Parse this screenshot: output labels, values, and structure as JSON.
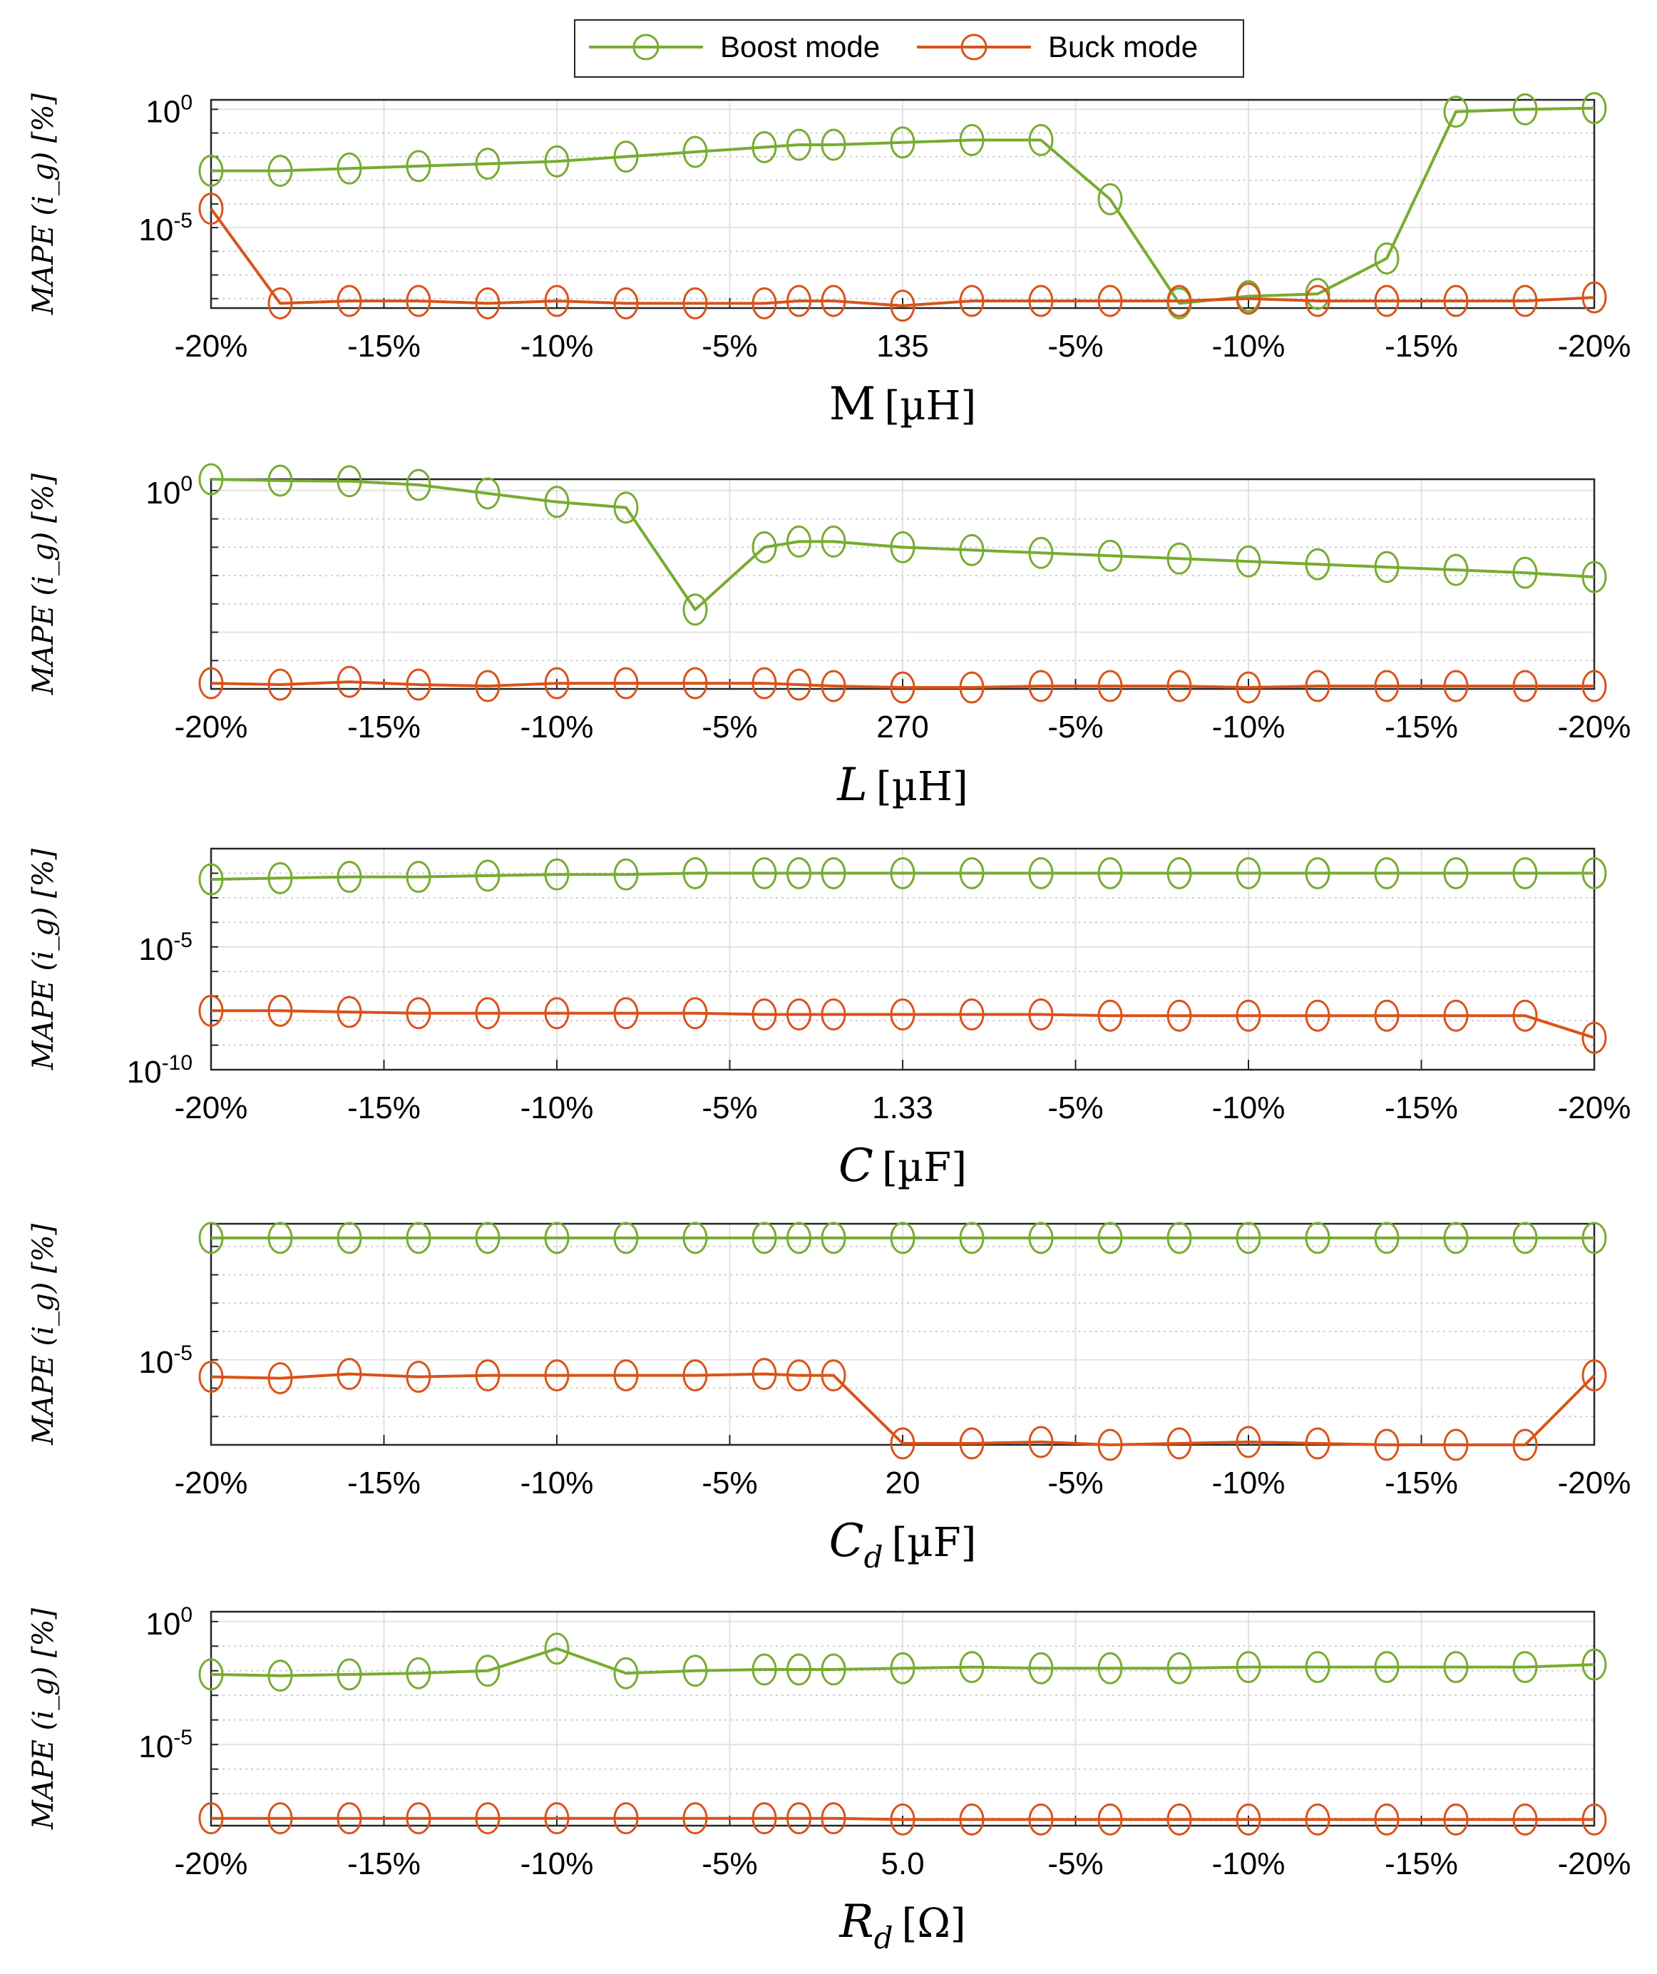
{
  "legend": {
    "items": [
      {
        "label": "Boost mode",
        "color": "#77ac30"
      },
      {
        "label": "Buck mode",
        "color": "#d95319"
      }
    ]
  },
  "chart_data": [
    {
      "type": "line",
      "yscale": "log",
      "ylabel": "MAPE (i_g) [%]",
      "xlabel": "M [µH]",
      "xlabel_main": "M",
      "xlabel_unit": "[µH]",
      "ylim_exp": [
        -8.4,
        0.4
      ],
      "ytick_labels": [
        {
          "exp": 0,
          "label": "10",
          "sup": "0"
        },
        {
          "exp": -5,
          "label": "10",
          "sup": "-5"
        }
      ],
      "xtick_labels": [
        "-20%",
        "-15%",
        "-10%",
        "-5%",
        "135",
        "-5%",
        "-10%",
        "-15%",
        "-20%"
      ],
      "x": [
        -20,
        -18,
        -16,
        -14,
        -12,
        -10,
        -8,
        -6,
        -4,
        -3,
        -2,
        0,
        2,
        4,
        6,
        8,
        10,
        12,
        14,
        16,
        18,
        20
      ],
      "series": [
        {
          "name": "Boost mode",
          "log10_values": [
            -2.6,
            -2.6,
            -2.5,
            -2.4,
            -2.3,
            -2.2,
            -2.0,
            -1.8,
            -1.6,
            -1.5,
            -1.5,
            -1.4,
            -1.3,
            -1.3,
            -3.8,
            -8.2,
            -7.9,
            -7.8,
            -6.3,
            -0.1,
            0.0,
            0.05
          ]
        },
        {
          "name": "Buck mode",
          "log10_values": [
            -4.2,
            -8.2,
            -8.1,
            -8.1,
            -8.2,
            -8.1,
            -8.2,
            -8.2,
            -8.2,
            -8.1,
            -8.1,
            -8.3,
            -8.1,
            -8.1,
            -8.1,
            -8.1,
            -8.0,
            -8.1,
            -8.1,
            -8.1,
            -8.1,
            -7.95
          ]
        }
      ]
    },
    {
      "type": "line",
      "yscale": "log",
      "ylabel": "MAPE (i_g) [%]",
      "xlabel": "L [µH]",
      "xlabel_main": "L",
      "xlabel_unit": "[µH]",
      "ylim_exp": [
        -7.0,
        0.4
      ],
      "ytick_labels": [
        {
          "exp": 0,
          "label": "10",
          "sup": "0"
        }
      ],
      "xtick_labels": [
        "-20%",
        "-15%",
        "-10%",
        "-5%",
        "270",
        "-5%",
        "-10%",
        "-15%",
        "-20%"
      ],
      "x": [
        -20,
        -18,
        -16,
        -14,
        -12,
        -10,
        -8,
        -6,
        -4,
        -3,
        -2,
        0,
        2,
        4,
        6,
        8,
        10,
        12,
        14,
        16,
        18,
        20
      ],
      "series": [
        {
          "name": "Boost mode",
          "log10_values": [
            0.4,
            0.35,
            0.33,
            0.2,
            -0.1,
            -0.4,
            -0.6,
            -4.2,
            -2.0,
            -1.8,
            -1.8,
            -2.0,
            -2.1,
            -2.2,
            -2.3,
            -2.4,
            -2.5,
            -2.6,
            -2.7,
            -2.8,
            -2.9,
            -3.05
          ]
        },
        {
          "name": "Buck mode",
          "log10_values": [
            -6.8,
            -6.85,
            -6.75,
            -6.85,
            -6.9,
            -6.8,
            -6.8,
            -6.8,
            -6.8,
            -6.85,
            -6.9,
            -6.95,
            -6.95,
            -6.9,
            -6.9,
            -6.9,
            -6.95,
            -6.9,
            -6.9,
            -6.9,
            -6.9,
            -6.9
          ]
        }
      ]
    },
    {
      "type": "line",
      "yscale": "log",
      "ylabel": "MAPE (i_g) [%]",
      "xlabel": "C [µF]",
      "xlabel_main": "C",
      "xlabel_unit": "[µF]",
      "ylim_exp": [
        -10.0,
        -1.0
      ],
      "ytick_labels": [
        {
          "exp": -5,
          "label": "10",
          "sup": "-5"
        },
        {
          "exp": -10,
          "label": "10",
          "sup": "-10"
        }
      ],
      "xtick_labels": [
        "-20%",
        "-15%",
        "-10%",
        "-5%",
        "1.33",
        "-5%",
        "-10%",
        "-15%",
        "-20%"
      ],
      "x": [
        -20,
        -18,
        -16,
        -14,
        -12,
        -10,
        -8,
        -6,
        -4,
        -3,
        -2,
        0,
        2,
        4,
        6,
        8,
        10,
        12,
        14,
        16,
        18,
        20
      ],
      "series": [
        {
          "name": "Boost mode",
          "log10_values": [
            -2.25,
            -2.2,
            -2.15,
            -2.15,
            -2.1,
            -2.05,
            -2.05,
            -2.0,
            -2.0,
            -2.0,
            -2.0,
            -2.0,
            -2.0,
            -2.0,
            -2.0,
            -2.0,
            -2.0,
            -2.0,
            -2.0,
            -2.0,
            -2.0,
            -2.0
          ]
        },
        {
          "name": "Buck mode",
          "log10_values": [
            -7.6,
            -7.6,
            -7.65,
            -7.7,
            -7.7,
            -7.7,
            -7.7,
            -7.7,
            -7.75,
            -7.75,
            -7.75,
            -7.75,
            -7.75,
            -7.75,
            -7.8,
            -7.8,
            -7.8,
            -7.8,
            -7.8,
            -7.8,
            -7.8,
            -8.7
          ]
        }
      ]
    },
    {
      "type": "line",
      "yscale": "log",
      "ylabel": "MAPE (i_g) [%]",
      "xlabel": "C_d [µF]",
      "xlabel_main": "C",
      "xlabel_sub": "d",
      "xlabel_unit": "[µF]",
      "ylim_exp": [
        -8.0,
        -0.2
      ],
      "ytick_labels": [
        {
          "exp": -5,
          "label": "10",
          "sup": "-5"
        }
      ],
      "xtick_labels": [
        "-20%",
        "-15%",
        "-10%",
        "-5%",
        "20",
        "-5%",
        "-10%",
        "-15%",
        "-20%"
      ],
      "x": [
        -20,
        -18,
        -16,
        -14,
        -12,
        -10,
        -8,
        -6,
        -4,
        -3,
        -2,
        0,
        2,
        4,
        6,
        8,
        10,
        12,
        14,
        16,
        18,
        20
      ],
      "series": [
        {
          "name": "Boost mode",
          "log10_values": [
            -0.7,
            -0.7,
            -0.7,
            -0.7,
            -0.7,
            -0.7,
            -0.7,
            -0.7,
            -0.7,
            -0.7,
            -0.7,
            -0.7,
            -0.7,
            -0.7,
            -0.7,
            -0.7,
            -0.7,
            -0.7,
            -0.7,
            -0.7,
            -0.7,
            -0.7
          ]
        },
        {
          "name": "Buck mode",
          "log10_values": [
            -5.6,
            -5.65,
            -5.5,
            -5.6,
            -5.55,
            -5.55,
            -5.55,
            -5.55,
            -5.5,
            -5.55,
            -5.55,
            -7.95,
            -7.95,
            -7.9,
            -8.0,
            -7.95,
            -7.9,
            -7.95,
            -8.0,
            -8.0,
            -8.0,
            -5.55
          ]
        }
      ]
    },
    {
      "type": "line",
      "yscale": "log",
      "ylabel": "MAPE (i_g) [%]",
      "xlabel": "R_d [Ω]",
      "xlabel_main": "R",
      "xlabel_sub": "d",
      "xlabel_unit": "[Ω]",
      "ylim_exp": [
        -8.3,
        0.4
      ],
      "ytick_labels": [
        {
          "exp": 0,
          "label": "10",
          "sup": "0"
        },
        {
          "exp": -5,
          "label": "10",
          "sup": "-5"
        }
      ],
      "xtick_labels": [
        "-20%",
        "-15%",
        "-10%",
        "-5%",
        "5.0",
        "-5%",
        "-10%",
        "-15%",
        "-20%"
      ],
      "x": [
        -20,
        -18,
        -16,
        -14,
        -12,
        -10,
        -8,
        -6,
        -4,
        -3,
        -2,
        0,
        2,
        4,
        6,
        8,
        10,
        12,
        14,
        16,
        18,
        20
      ],
      "series": [
        {
          "name": "Boost mode",
          "log10_values": [
            -2.15,
            -2.2,
            -2.15,
            -2.1,
            -2.0,
            -1.1,
            -2.1,
            -2.0,
            -1.95,
            -1.95,
            -1.95,
            -1.9,
            -1.85,
            -1.9,
            -1.9,
            -1.9,
            -1.85,
            -1.85,
            -1.85,
            -1.85,
            -1.85,
            -1.75
          ]
        },
        {
          "name": "Buck mode",
          "log10_values": [
            -8.0,
            -8.0,
            -8.0,
            -8.0,
            -8.0,
            -8.0,
            -8.0,
            -8.0,
            -8.0,
            -8.0,
            -8.0,
            -8.05,
            -8.05,
            -8.05,
            -8.05,
            -8.05,
            -8.05,
            -8.05,
            -8.05,
            -8.05,
            -8.05,
            -8.05
          ]
        }
      ]
    }
  ]
}
